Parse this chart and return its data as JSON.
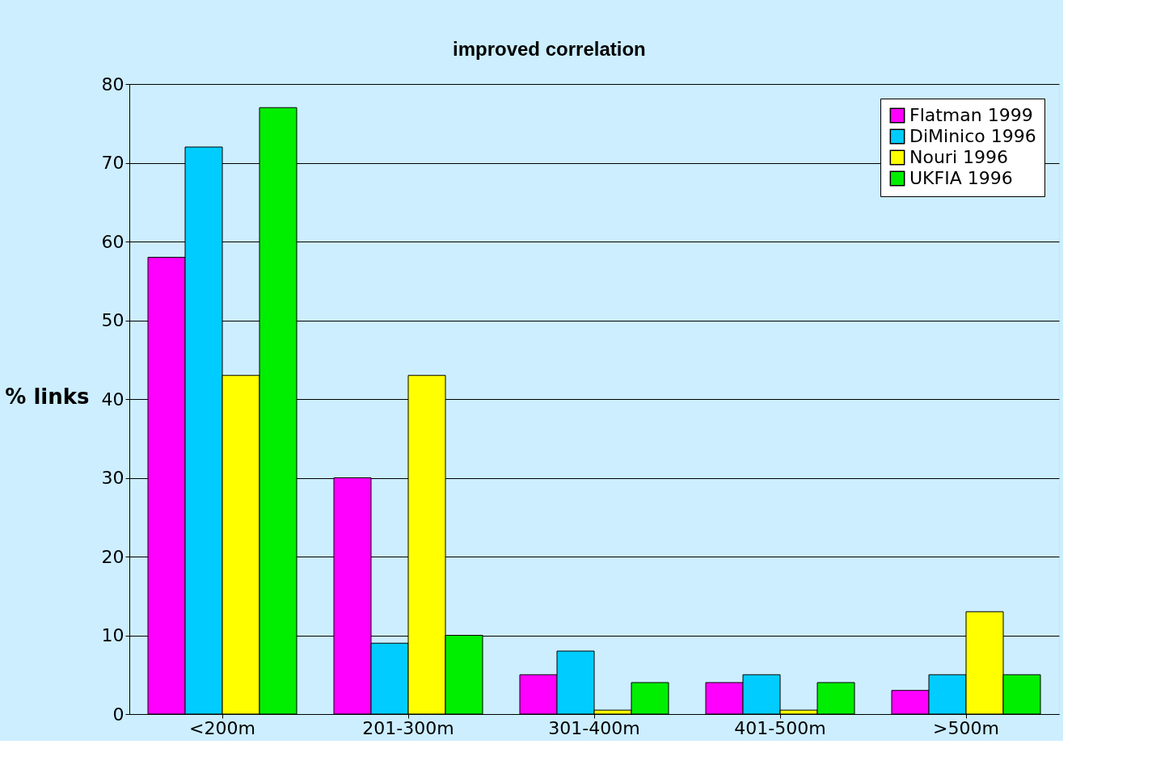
{
  "chart_data": {
    "type": "bar",
    "ylabel": "% links",
    "annotations": [
      "improved correlation"
    ],
    "categories": [
      "<200m",
      "201-300m",
      "301-400m",
      "401-500m",
      ">500m"
    ],
    "series": [
      {
        "name": "Flatman 1999",
        "color": "#ff00ff",
        "values": [
          58,
          30,
          5,
          4,
          3
        ]
      },
      {
        "name": "DiMinico 1996",
        "color": "#00ccff",
        "values": [
          72,
          9,
          8,
          5,
          5
        ]
      },
      {
        "name": "Nouri 1996",
        "color": "#ffff00",
        "values": [
          43,
          43,
          0.5,
          0.5,
          13
        ]
      },
      {
        "name": "UKFIA 1996",
        "color": "#00ee00",
        "values": [
          77,
          10,
          4,
          4,
          5
        ]
      }
    ],
    "ylim": [
      0,
      80
    ],
    "yticks": [
      0,
      10,
      20,
      30,
      40,
      50,
      60,
      70,
      80
    ],
    "grid": "y",
    "legend": "top right"
  }
}
